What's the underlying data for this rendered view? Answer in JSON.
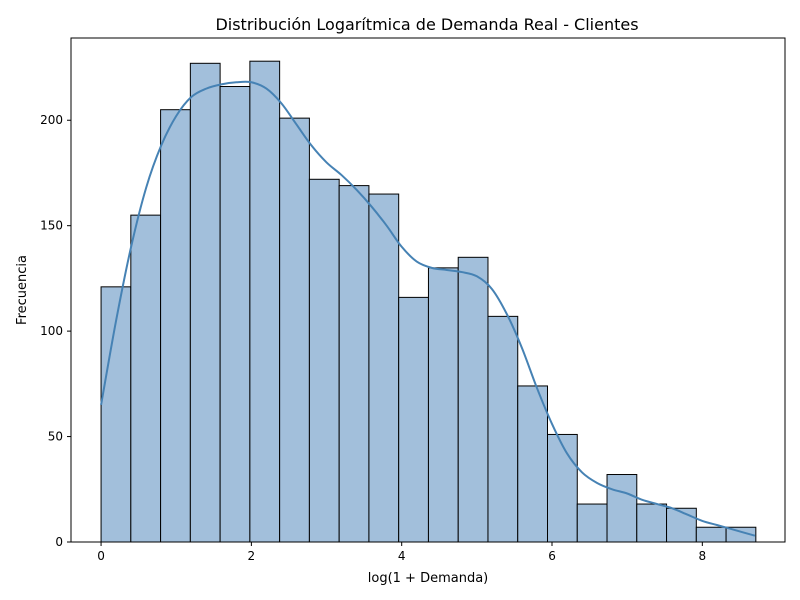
{
  "chart_data": {
    "type": "bar",
    "title": "Distribución Logarítmica de Demanda Real - Clientes",
    "xlabel": "log(1 + Demanda)",
    "ylabel": "Frecuencia",
    "xlim": [
      -0.4,
      9.1
    ],
    "ylim": [
      0,
      239
    ],
    "xticks": [
      0,
      2,
      4,
      6,
      8
    ],
    "yticks": [
      0,
      50,
      100,
      150,
      200
    ],
    "bin_edges": [
      0,
      0.396,
      0.792,
      1.188,
      1.584,
      1.98,
      2.376,
      2.772,
      3.168,
      3.564,
      3.96,
      4.356,
      4.752,
      5.148,
      5.544,
      5.94,
      6.336,
      6.732,
      7.128,
      7.524,
      7.92,
      8.316,
      8.712
    ],
    "values": [
      121,
      155,
      205,
      227,
      216,
      228,
      201,
      172,
      169,
      165,
      116,
      130,
      135,
      107,
      74,
      51,
      18,
      32,
      18,
      16,
      7,
      7
    ],
    "kde": {
      "x": [
        0,
        0.2,
        0.4,
        0.6,
        0.8,
        1.0,
        1.2,
        1.4,
        1.6,
        1.8,
        2.0,
        2.2,
        2.4,
        2.6,
        2.8,
        3.0,
        3.2,
        3.4,
        3.6,
        3.8,
        4.0,
        4.2,
        4.4,
        4.6,
        4.8,
        5.0,
        5.2,
        5.4,
        5.6,
        5.8,
        6.0,
        6.2,
        6.4,
        6.6,
        6.8,
        7.0,
        7.2,
        7.4,
        7.6,
        7.8,
        8.0,
        8.2,
        8.4,
        8.7
      ],
      "y": [
        65,
        105,
        140,
        168,
        188,
        202,
        211,
        215,
        217,
        218,
        218,
        215,
        208,
        198,
        188,
        180,
        174,
        167,
        159,
        150,
        140,
        133,
        130,
        129,
        128,
        126,
        120,
        108,
        92,
        73,
        56,
        42,
        33,
        28,
        25,
        23,
        20,
        18,
        16,
        13,
        10,
        8,
        6,
        3
      ]
    },
    "grid": false,
    "colors": {
      "bar_fill": "#a2bfdb",
      "kde_line": "#4682b4"
    }
  }
}
